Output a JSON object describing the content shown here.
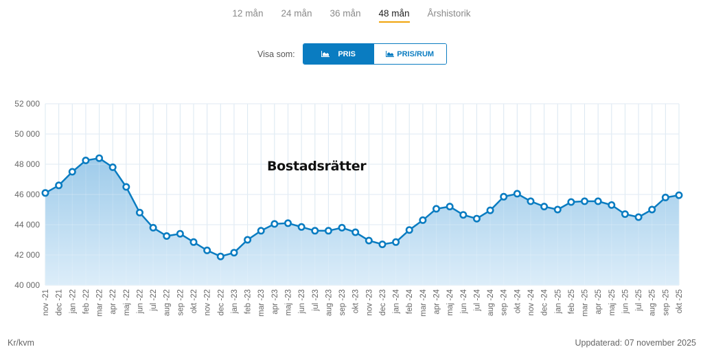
{
  "tabs": [
    {
      "label": "12 mån",
      "active": false
    },
    {
      "label": "24 mån",
      "active": false
    },
    {
      "label": "36 mån",
      "active": false
    },
    {
      "label": "48 mån",
      "active": true
    },
    {
      "label": "Årshistorik",
      "active": false
    }
  ],
  "view_toggle": {
    "label": "Visa som:",
    "options": [
      {
        "label": "PRIS",
        "icon": "area-chart-icon",
        "active": true
      },
      {
        "label": "PRIS/RUM",
        "icon": "area-chart-icon",
        "active": false
      }
    ]
  },
  "colors": {
    "accent": "#0a7cc1",
    "line": "#0a7cc1",
    "fill_top": "#9ecbea",
    "fill_bottom": "#dcedf9",
    "grid": "#d4e3ef",
    "tab_underline": "#f0a30a"
  },
  "footer": {
    "unit": "Kr/kvm",
    "updated": "Uppdaterad: 07 november 2025"
  },
  "chart_data": {
    "type": "area",
    "title": "Bostadsrätter",
    "xlabel": "",
    "ylabel": "Kr/kvm",
    "ylim": [
      40000,
      52000
    ],
    "yticks": [
      40000,
      42000,
      44000,
      46000,
      48000,
      50000,
      52000
    ],
    "ytick_labels": [
      "40 000",
      "42 000",
      "44 000",
      "46 000",
      "48 000",
      "50 000",
      "52 000"
    ],
    "grid": true,
    "legend": null,
    "categories": [
      "nov -21",
      "dec -21",
      "jan -22",
      "feb -22",
      "mar -22",
      "apr -22",
      "maj -22",
      "jun -22",
      "jul -22",
      "aug -22",
      "sep -22",
      "okt -22",
      "nov -22",
      "dec -22",
      "jan -23",
      "feb -23",
      "mar -23",
      "apr -23",
      "maj -23",
      "jun -23",
      "jul -23",
      "aug -23",
      "sep -23",
      "okt -23",
      "nov -23",
      "dec -23",
      "jan -24",
      "feb -24",
      "mar -24",
      "apr -24",
      "maj -24",
      "jun -24",
      "jul -24",
      "aug -24",
      "sep -24",
      "okt -24",
      "nov -24",
      "dec -24",
      "jan -25",
      "feb -25",
      "mar -25",
      "apr -25",
      "maj -25",
      "jun -25",
      "jul -25",
      "aug -25",
      "sep -25",
      "okt -25"
    ],
    "series": [
      {
        "name": "Bostadsrätter",
        "values": [
          46100,
          46600,
          47500,
          48250,
          48400,
          47800,
          46500,
          44800,
          43800,
          43250,
          43400,
          42850,
          42300,
          41900,
          42150,
          43000,
          43600,
          44050,
          44100,
          43850,
          43600,
          43600,
          43800,
          43500,
          42950,
          42700,
          42850,
          43650,
          44300,
          45050,
          45200,
          44650,
          44400,
          44950,
          45850,
          46050,
          45550,
          45200,
          45000,
          45500,
          45550,
          45550,
          45300,
          44700,
          44500,
          45000,
          45800,
          45950
        ]
      }
    ]
  }
}
